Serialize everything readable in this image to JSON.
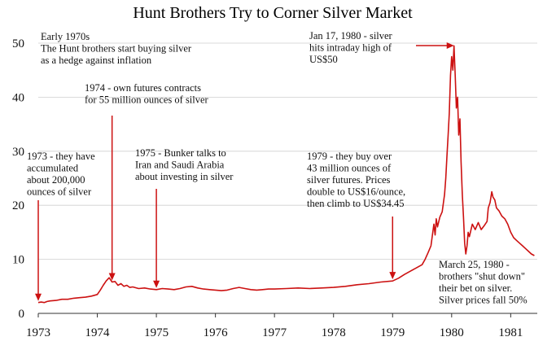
{
  "chart_data": {
    "type": "line",
    "title": "Hunt Brothers Try to Corner Silver Market",
    "xlabel": "",
    "ylabel": "",
    "xlim": [
      1973.0,
      1981.45
    ],
    "ylim": [
      0,
      50
    ],
    "x_ticks": [
      "1973",
      "1974",
      "1975",
      "1976",
      "1977",
      "1978",
      "1979",
      "1980",
      "1981"
    ],
    "y_ticks": [
      "0",
      "10",
      "20",
      "30",
      "40",
      "50"
    ],
    "grid": "horizontal",
    "line_color": "#cc1111",
    "series": [
      {
        "points": [
          [
            1973.0,
            2.0
          ],
          [
            1973.05,
            2.1
          ],
          [
            1973.1,
            2.0
          ],
          [
            1973.15,
            2.2
          ],
          [
            1973.2,
            2.3
          ],
          [
            1973.3,
            2.4
          ],
          [
            1973.4,
            2.6
          ],
          [
            1973.5,
            2.6
          ],
          [
            1973.6,
            2.8
          ],
          [
            1973.7,
            2.9
          ],
          [
            1973.8,
            3.0
          ],
          [
            1973.9,
            3.2
          ],
          [
            1974.0,
            3.5
          ],
          [
            1974.05,
            4.3
          ],
          [
            1974.1,
            5.2
          ],
          [
            1974.15,
            6.0
          ],
          [
            1974.2,
            6.6
          ],
          [
            1974.25,
            5.8
          ],
          [
            1974.3,
            5.9
          ],
          [
            1974.35,
            5.2
          ],
          [
            1974.4,
            5.5
          ],
          [
            1974.45,
            5.0
          ],
          [
            1974.5,
            5.2
          ],
          [
            1974.55,
            4.8
          ],
          [
            1974.6,
            4.9
          ],
          [
            1974.7,
            4.6
          ],
          [
            1974.8,
            4.7
          ],
          [
            1974.9,
            4.5
          ],
          [
            1975.0,
            4.4
          ],
          [
            1975.1,
            4.6
          ],
          [
            1975.2,
            4.5
          ],
          [
            1975.3,
            4.4
          ],
          [
            1975.4,
            4.6
          ],
          [
            1975.5,
            4.9
          ],
          [
            1975.6,
            5.0
          ],
          [
            1975.7,
            4.7
          ],
          [
            1975.8,
            4.5
          ],
          [
            1975.9,
            4.4
          ],
          [
            1976.0,
            4.3
          ],
          [
            1976.1,
            4.2
          ],
          [
            1976.2,
            4.3
          ],
          [
            1976.3,
            4.6
          ],
          [
            1976.4,
            4.8
          ],
          [
            1976.5,
            4.6
          ],
          [
            1976.6,
            4.4
          ],
          [
            1976.7,
            4.3
          ],
          [
            1976.8,
            4.4
          ],
          [
            1976.9,
            4.5
          ],
          [
            1977.0,
            4.5
          ],
          [
            1977.2,
            4.6
          ],
          [
            1977.4,
            4.7
          ],
          [
            1977.6,
            4.6
          ],
          [
            1977.8,
            4.7
          ],
          [
            1978.0,
            4.8
          ],
          [
            1978.2,
            5.0
          ],
          [
            1978.4,
            5.3
          ],
          [
            1978.6,
            5.5
          ],
          [
            1978.8,
            5.8
          ],
          [
            1979.0,
            6.0
          ],
          [
            1979.1,
            6.5
          ],
          [
            1979.2,
            7.2
          ],
          [
            1979.3,
            7.8
          ],
          [
            1979.4,
            8.4
          ],
          [
            1979.5,
            9.0
          ],
          [
            1979.55,
            10.0
          ],
          [
            1979.6,
            11.2
          ],
          [
            1979.65,
            12.5
          ],
          [
            1979.7,
            16.5
          ],
          [
            1979.72,
            14.5
          ],
          [
            1979.74,
            17.5
          ],
          [
            1979.76,
            16.0
          ],
          [
            1979.8,
            17.8
          ],
          [
            1979.84,
            18.8
          ],
          [
            1979.88,
            22.0
          ],
          [
            1979.9,
            25.0
          ],
          [
            1979.92,
            29.0
          ],
          [
            1979.94,
            33.0
          ],
          [
            1979.96,
            37.0
          ],
          [
            1979.98,
            44.0
          ],
          [
            1980.0,
            47.5
          ],
          [
            1980.02,
            45.0
          ],
          [
            1980.04,
            49.5
          ],
          [
            1980.06,
            44.0
          ],
          [
            1980.08,
            38.0
          ],
          [
            1980.1,
            40.0
          ],
          [
            1980.12,
            33.0
          ],
          [
            1980.14,
            36.0
          ],
          [
            1980.16,
            28.0
          ],
          [
            1980.18,
            22.0
          ],
          [
            1980.2,
            18.0
          ],
          [
            1980.22,
            13.0
          ],
          [
            1980.24,
            11.0
          ],
          [
            1980.26,
            12.5
          ],
          [
            1980.28,
            15.0
          ],
          [
            1980.3,
            14.2
          ],
          [
            1980.35,
            16.5
          ],
          [
            1980.4,
            15.5
          ],
          [
            1980.45,
            16.8
          ],
          [
            1980.5,
            15.5
          ],
          [
            1980.55,
            16.2
          ],
          [
            1980.6,
            17.0
          ],
          [
            1980.62,
            19.5
          ],
          [
            1980.65,
            20.5
          ],
          [
            1980.68,
            22.5
          ],
          [
            1980.7,
            21.5
          ],
          [
            1980.73,
            21.0
          ],
          [
            1980.76,
            19.5
          ],
          [
            1980.8,
            19.0
          ],
          [
            1980.85,
            18.0
          ],
          [
            1980.9,
            17.5
          ],
          [
            1980.95,
            16.5
          ],
          [
            1981.0,
            15.0
          ],
          [
            1981.05,
            14.0
          ],
          [
            1981.1,
            13.5
          ],
          [
            1981.15,
            13.0
          ],
          [
            1981.2,
            12.5
          ],
          [
            1981.25,
            12.0
          ],
          [
            1981.3,
            11.5
          ],
          [
            1981.35,
            11.0
          ],
          [
            1981.4,
            10.7
          ]
        ]
      }
    ],
    "annotations": [
      {
        "lines": [
          "Early 1970s",
          "The Hunt brothers start buying silver",
          "as a hedge against inflation"
        ],
        "arrow": false
      },
      {
        "lines": [
          "1973 - they have",
          "accumulated",
          "about 200,000",
          "ounces of silver"
        ],
        "arrow": true,
        "x": 1973.0,
        "y": 2.0
      },
      {
        "lines": [
          "1974 - own futures contracts",
          "for 55 million ounces of silver"
        ],
        "arrow": true,
        "x": 1974.25,
        "y": 5.8
      },
      {
        "lines": [
          "1975 - Bunker talks to",
          "Iran and Saudi Arabia",
          "about investing in silver"
        ],
        "arrow": true,
        "x": 1975.0,
        "y": 4.4
      },
      {
        "lines": [
          "1979 - they buy over",
          "43 million ounces of",
          "silver futures. Prices",
          "double to US$16/ounce,",
          "then climb to US$34.45"
        ],
        "arrow": true,
        "x": 1979.0,
        "y": 6.0
      },
      {
        "lines": [
          "Jan 17, 1980 - silver",
          "hits intraday high of",
          "US$50"
        ],
        "arrow": true,
        "x": 1980.04,
        "y": 49.5
      },
      {
        "lines": [
          "March 25, 1980 -",
          "brothers \"shut down\"",
          "their bet on silver.",
          "Silver prices fall 50%"
        ],
        "arrow": false
      }
    ]
  }
}
